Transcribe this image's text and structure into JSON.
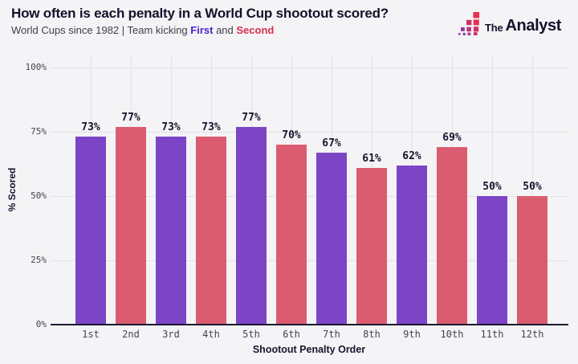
{
  "header": {
    "title": "How often is each penalty in a World Cup shootout scored?",
    "subtitle_prefix": "World Cups since 1982 | Team kicking ",
    "first_label": "First",
    "and_word": " and ",
    "second_label": "Second"
  },
  "logo": {
    "word_the": "The",
    "word_analyst": "Analyst"
  },
  "colors": {
    "background": "#F4F4F6",
    "bar_first": "#7B45C6",
    "bar_second": "#DB5C70",
    "first_text": "#5123C6",
    "second_text": "#D8304D",
    "dark_text": "#14122B",
    "tick_text": "#45435_2",
    "gridline": "#E2E1E7",
    "axis_line": "#1B1830"
  },
  "chart_data": {
    "type": "bar",
    "title": "How often is each penalty in a World Cup shootout scored?",
    "subtitle": "World Cups since 1982 | Team kicking First and Second",
    "categories": [
      "1st",
      "2nd",
      "3rd",
      "4th",
      "5th",
      "6th",
      "7th",
      "8th",
      "9th",
      "10th",
      "11th",
      "12th"
    ],
    "values": [
      73,
      77,
      73,
      73,
      77,
      70,
      67,
      61,
      62,
      69,
      50,
      50
    ],
    "series_per_bar": [
      "First",
      "Second",
      "First",
      "Second",
      "First",
      "Second",
      "First",
      "Second",
      "First",
      "Second",
      "First",
      "Second"
    ],
    "legend": [
      {
        "name": "First",
        "color": "#7B45C6"
      },
      {
        "name": "Second",
        "color": "#DB5C70"
      }
    ],
    "xlabel": "Shootout Penalty Order",
    "ylabel": "% Scored",
    "ylim": [
      0,
      100
    ],
    "yticks": [
      {
        "value": 0,
        "label": "0%"
      },
      {
        "value": 25,
        "label": "25%"
      },
      {
        "value": 50,
        "label": "50%"
      },
      {
        "value": 75,
        "label": "75%"
      },
      {
        "value": 100,
        "label": "100%"
      }
    ],
    "grid": true,
    "legend_position": "embedded-in-subtitle"
  }
}
